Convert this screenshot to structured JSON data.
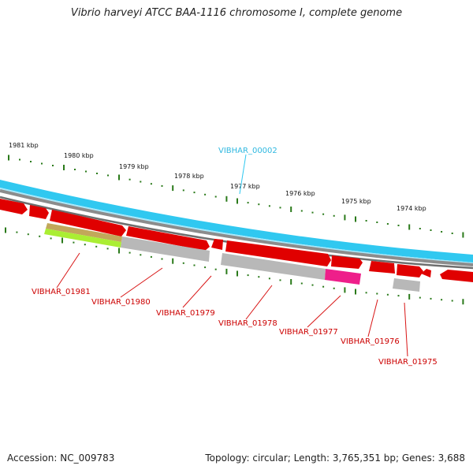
{
  "title": "Vibrio harveyi ATCC BAA-1116 chromosome I, complete genome",
  "footer": {
    "accession": "Accession: NC_009783",
    "stats": "Topology: circular; Length: 3,765,351 bp; Genes: 3,688"
  },
  "colors": {
    "forward_strand": "#e00000",
    "selected_gene": "#30c8f0",
    "label_red": "#cc0000",
    "tick_green": "#2a7a1a",
    "gray_feature": "#b8b8b8",
    "magenta_feature": "#ee1f8a",
    "lime_feature": "#aaee33",
    "olive_feature": "#c2a85a"
  },
  "scale_labels": [
    "1981 kbp",
    "1980 kbp",
    "1979 kbp",
    "1978 kbp",
    "1977 kbp",
    "1976 kbp",
    "1975 kbp",
    "1974 kbp"
  ],
  "highlight_gene": "VIBHAR_00002",
  "gene_labels": [
    "VIBHAR_01981",
    "VIBHAR_01980",
    "VIBHAR_01979",
    "VIBHAR_01978",
    "VIBHAR_01977",
    "VIBHAR_01976",
    "VIBHAR_01975"
  ]
}
